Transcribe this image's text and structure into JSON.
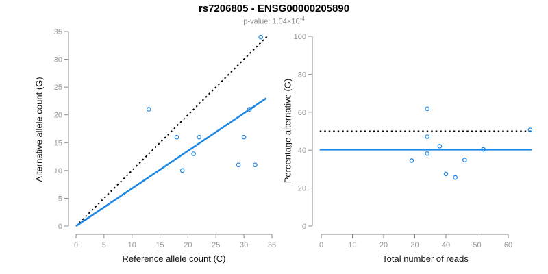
{
  "header": {
    "title": "rs7206805 - ENSG00000205890",
    "p_value_base": "p-value: 1.04×10",
    "p_value_exponent": "-4"
  },
  "colors": {
    "point_blue": "#1E88E5",
    "line_blue": "#1E88E5",
    "line_black": "#000000",
    "axis": "#8A8A8A",
    "tick_label": "#969696",
    "axis_title": "#141414",
    "title": "#000000",
    "subtitle": "#8C8C8C",
    "background": "#FFFFFF"
  },
  "chart_data": [
    {
      "panel": "left",
      "type": "scatter",
      "title": "",
      "xlabel": "Reference allele count (C)",
      "ylabel": "Alternative allele count (G)",
      "xlim": [
        0,
        35
      ],
      "ylim": [
        0,
        35
      ],
      "xticks": [
        0,
        5,
        10,
        15,
        20,
        25,
        30,
        35
      ],
      "yticks": [
        0,
        5,
        10,
        15,
        20,
        25,
        30,
        35
      ],
      "grid": false,
      "legend": "none",
      "points": [
        [
          13,
          21
        ],
        [
          18,
          16
        ],
        [
          19,
          10
        ],
        [
          21,
          13
        ],
        [
          22,
          16
        ],
        [
          29,
          11
        ],
        [
          30,
          16
        ],
        [
          31,
          21
        ],
        [
          32,
          11
        ],
        [
          33,
          34
        ]
      ],
      "lines": [
        {
          "name": "left-identity-line",
          "role": "y-equals-x-reference",
          "style": "dotted",
          "color": "#000000",
          "from": [
            0,
            0
          ],
          "to": [
            34.2,
            34.2
          ]
        },
        {
          "name": "left-fit-line",
          "role": "fitted-allelic-ratio",
          "style": "solid",
          "color": "#1E88E5",
          "from": [
            0,
            0
          ],
          "to": [
            34,
            23
          ]
        }
      ]
    },
    {
      "panel": "right",
      "type": "scatter",
      "title": "",
      "xlabel": "Total number of reads",
      "ylabel": "Percentage alternative (G)",
      "xlim": [
        0,
        67
      ],
      "ylim": [
        0,
        100
      ],
      "xticks": [
        0,
        10,
        20,
        30,
        40,
        50,
        60
      ],
      "yticks": [
        0,
        20,
        40,
        60,
        80,
        100
      ],
      "grid": false,
      "legend": "none",
      "points": [
        [
          34,
          61.8
        ],
        [
          34,
          47.1
        ],
        [
          29,
          34.5
        ],
        [
          34,
          38.2
        ],
        [
          38,
          42.1
        ],
        [
          40,
          27.5
        ],
        [
          46,
          34.8
        ],
        [
          52,
          40.4
        ],
        [
          43,
          25.6
        ],
        [
          67,
          50.7
        ]
      ],
      "lines": [
        {
          "name": "right-fifty-percent-line",
          "role": "50-percent-reference",
          "style": "dotted",
          "color": "#000000",
          "from": [
            -0.5,
            50
          ],
          "to": [
            67.5,
            50
          ]
        },
        {
          "name": "right-mean-line",
          "role": "mean-percentage-alternative",
          "style": "solid",
          "color": "#1E88E5",
          "from": [
            -0.5,
            40.3
          ],
          "to": [
            67.5,
            40.3
          ]
        }
      ]
    }
  ]
}
